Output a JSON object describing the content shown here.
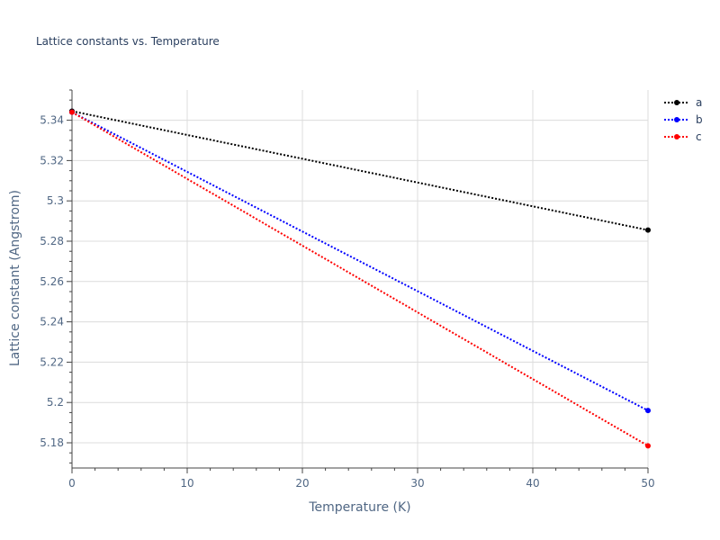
{
  "chart_data": {
    "type": "line",
    "title": "Lattice constants vs. Temperature",
    "xlabel": "Temperature (K)",
    "ylabel": "Lattice constant (Angstrom)",
    "xlim": [
      0,
      50
    ],
    "ylim": [
      5.1675,
      5.355
    ],
    "x_ticks": [
      0,
      10,
      20,
      30,
      40,
      50
    ],
    "y_ticks": [
      5.18,
      5.2,
      5.22,
      5.24,
      5.26,
      5.28,
      5.3,
      5.32,
      5.34
    ],
    "y_tick_labels": [
      "5.18",
      "5.2",
      "5.22",
      "5.24",
      "5.26",
      "5.28",
      "5.3",
      "5.32",
      "5.34"
    ],
    "x_tick_labels": [
      "0",
      "10",
      "20",
      "30",
      "40",
      "50"
    ],
    "grid": true,
    "legend_position": "top-right",
    "line_style": "dotted",
    "series": [
      {
        "name": "a",
        "color": "#000000",
        "x": [
          0,
          50
        ],
        "y": [
          5.3445,
          5.2855
        ]
      },
      {
        "name": "b",
        "color": "#0000ff",
        "x": [
          0,
          50
        ],
        "y": [
          5.344,
          5.196
        ]
      },
      {
        "name": "c",
        "color": "#ff0000",
        "x": [
          0,
          50
        ],
        "y": [
          5.344,
          5.1785
        ]
      }
    ]
  }
}
